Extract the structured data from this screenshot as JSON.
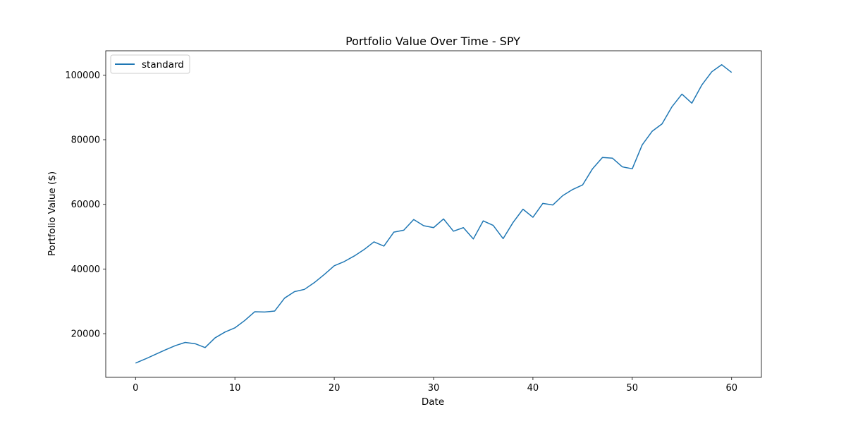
{
  "chart_data": {
    "type": "line",
    "title": "Portfolio Value Over Time - SPY",
    "xlabel": "Date",
    "ylabel": "Portfolio Value ($)",
    "xlim": [
      -3,
      63
    ],
    "ylim": [
      6500,
      107500
    ],
    "xticks": [
      0,
      10,
      20,
      30,
      40,
      50,
      60
    ],
    "yticks": [
      20000,
      40000,
      60000,
      80000,
      100000
    ],
    "grid": false,
    "legend_position": "top-left",
    "series": [
      {
        "name": "standard",
        "color": "#1f77b4",
        "x": [
          0,
          1,
          2,
          3,
          4,
          5,
          6,
          7,
          8,
          9,
          10,
          11,
          12,
          13,
          14,
          15,
          16,
          17,
          18,
          19,
          20,
          21,
          22,
          23,
          24,
          25,
          26,
          27,
          28,
          29,
          30,
          31,
          32,
          33,
          34,
          35,
          36,
          37,
          38,
          39,
          40,
          41,
          42,
          43,
          44,
          45,
          46,
          47,
          48,
          49,
          50,
          51,
          52,
          53,
          54,
          55,
          56,
          57,
          58,
          59,
          60
        ],
        "y": [
          10900,
          12200,
          13600,
          15000,
          16300,
          17300,
          16900,
          15700,
          18700,
          20500,
          21800,
          24100,
          26800,
          26700,
          27000,
          31000,
          33000,
          33700,
          35800,
          38300,
          41000,
          42300,
          44000,
          46000,
          48400,
          47100,
          51400,
          52000,
          55300,
          53400,
          52800,
          55500,
          51700,
          52800,
          49300,
          54900,
          53500,
          49400,
          54400,
          58500,
          56000,
          60300,
          59800,
          62700,
          64600,
          66000,
          71000,
          74500,
          74300,
          71600,
          71000,
          78400,
          82600,
          84900,
          90200,
          94100,
          91300,
          96900,
          101000,
          103200,
          100800
        ]
      }
    ]
  }
}
